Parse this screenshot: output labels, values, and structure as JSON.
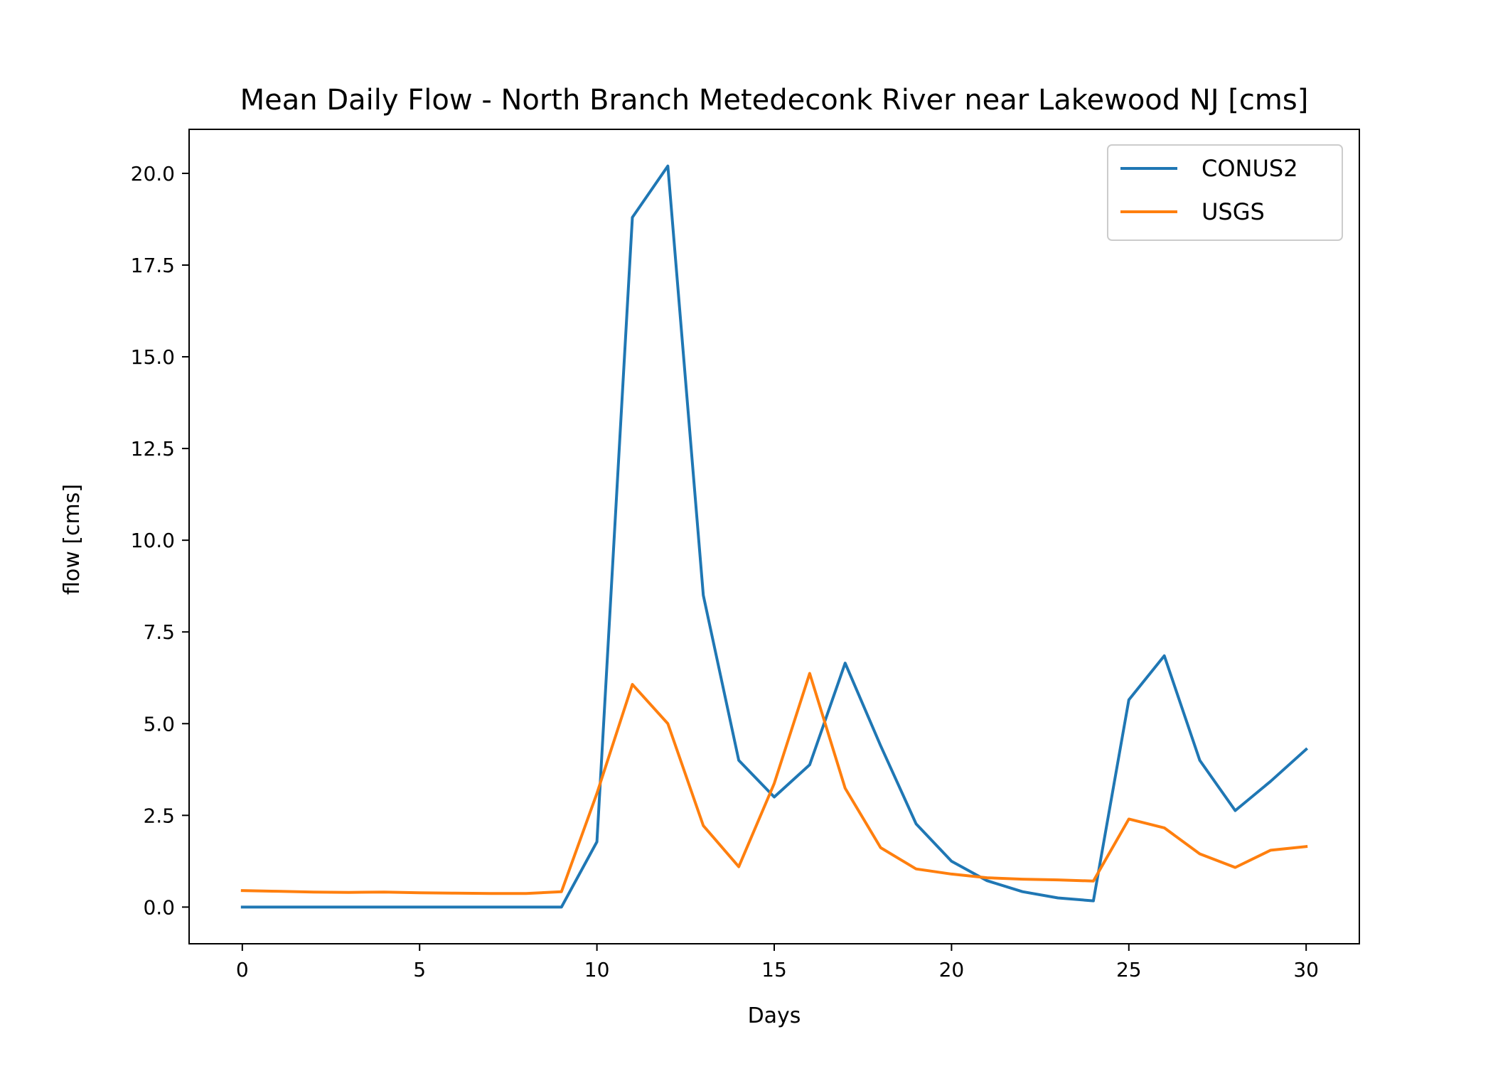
{
  "chart_data": {
    "type": "line",
    "title": "Mean Daily Flow - North Branch Metedeconk River near Lakewood NJ [cms]",
    "xlabel": "Days",
    "ylabel": "flow [cms]",
    "xlim": [
      -1.5,
      31.5
    ],
    "ylim": [
      -1.0,
      21.2
    ],
    "xticks": [
      0,
      5,
      10,
      15,
      20,
      25,
      30
    ],
    "yticks": [
      0.0,
      2.5,
      5.0,
      7.5,
      10.0,
      12.5,
      15.0,
      17.5,
      20.0
    ],
    "ytick_labels": [
      "0.0",
      "2.5",
      "5.0",
      "7.5",
      "10.0",
      "12.5",
      "15.0",
      "17.5",
      "20.0"
    ],
    "x": [
      0,
      1,
      2,
      3,
      4,
      5,
      6,
      7,
      8,
      9,
      10,
      11,
      12,
      13,
      14,
      15,
      16,
      17,
      18,
      19,
      20,
      21,
      22,
      23,
      24,
      25,
      26,
      27,
      28,
      29,
      30
    ],
    "series": [
      {
        "name": "CONUS2",
        "color": "#1f77b4",
        "values": [
          0.0,
          0.0,
          0.0,
          0.0,
          0.0,
          0.0,
          0.0,
          0.0,
          0.0,
          0.0,
          1.78,
          18.8,
          20.2,
          8.5,
          4.0,
          3.0,
          3.88,
          6.65,
          4.4,
          2.27,
          1.25,
          0.72,
          0.42,
          0.25,
          0.17,
          5.65,
          6.85,
          4.0,
          2.63,
          3.43,
          4.3
        ]
      },
      {
        "name": "USGS",
        "color": "#ff7f0e",
        "values": [
          0.45,
          0.43,
          0.41,
          0.4,
          0.41,
          0.39,
          0.38,
          0.37,
          0.37,
          0.42,
          3.1,
          6.07,
          5.0,
          2.22,
          1.1,
          3.37,
          6.37,
          3.24,
          1.62,
          1.04,
          0.9,
          0.8,
          0.76,
          0.74,
          0.71,
          2.4,
          2.16,
          1.45,
          1.08,
          1.55,
          1.65
        ]
      }
    ],
    "legend_position": "top-right",
    "grid": false
  }
}
